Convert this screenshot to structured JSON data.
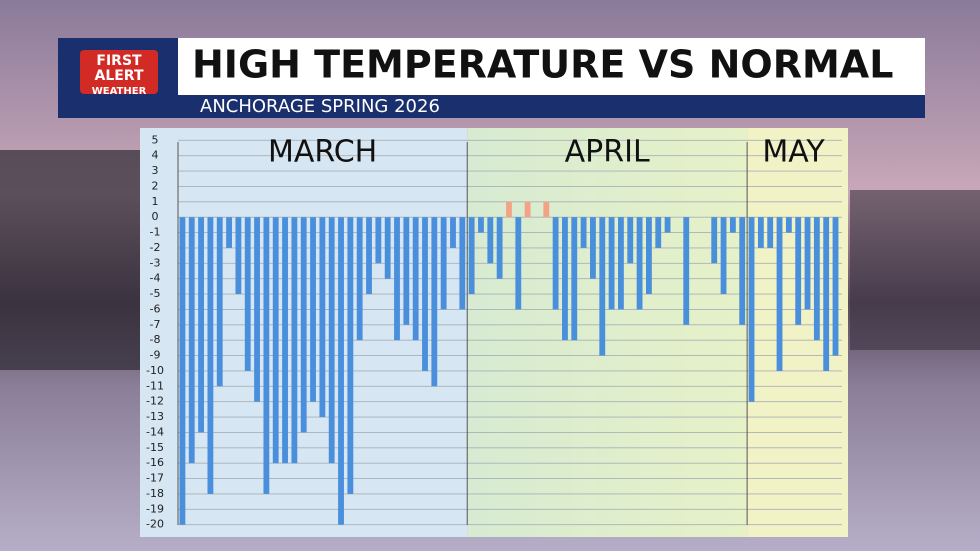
{
  "chart_data": {
    "type": "bar",
    "title": "HIGH TEMPERATURE VS NORMAL",
    "subtitle": "ANCHORAGE SPRING 2026",
    "brand": [
      "FIRST",
      "ALERT",
      "WEATHER"
    ],
    "color_below": "#4a8fdb",
    "color_above": "#f2a386",
    "ylim": [
      -20.8,
      5.8
    ],
    "yticks": [
      5,
      4,
      3,
      2,
      1,
      0,
      -1,
      -2,
      -3,
      -4,
      -5,
      -6,
      -7,
      -8,
      -9,
      -10,
      -11,
      -12,
      -13,
      -14,
      -15,
      -16,
      -17,
      -18,
      -19,
      -20
    ],
    "grid": true,
    "groups": [
      {
        "label": "MARCH",
        "values": [
          -20,
          -16,
          -14,
          -18,
          -11,
          -2,
          -5,
          -10,
          -12,
          -18,
          -16,
          -16,
          -16,
          -14,
          -12,
          -13,
          -16,
          -20,
          -18,
          -8,
          -5,
          -3,
          -4,
          -8,
          -7,
          -8,
          -10,
          -11,
          -6,
          -2,
          -6
        ]
      },
      {
        "label": "APRIL",
        "values": [
          -5,
          -1,
          -3,
          -4,
          1,
          -6,
          1,
          0,
          1,
          -6,
          -8,
          -8,
          -2,
          -4,
          -9,
          -6,
          -6,
          -3,
          -6,
          -5,
          -2,
          -1,
          0,
          -7,
          0,
          0,
          -3,
          -5,
          -1,
          -7
        ]
      },
      {
        "label": "MAY",
        "values": [
          -12,
          -2,
          -2,
          -10,
          -1,
          -7,
          -6,
          -8,
          -10,
          -9
        ]
      }
    ]
  }
}
